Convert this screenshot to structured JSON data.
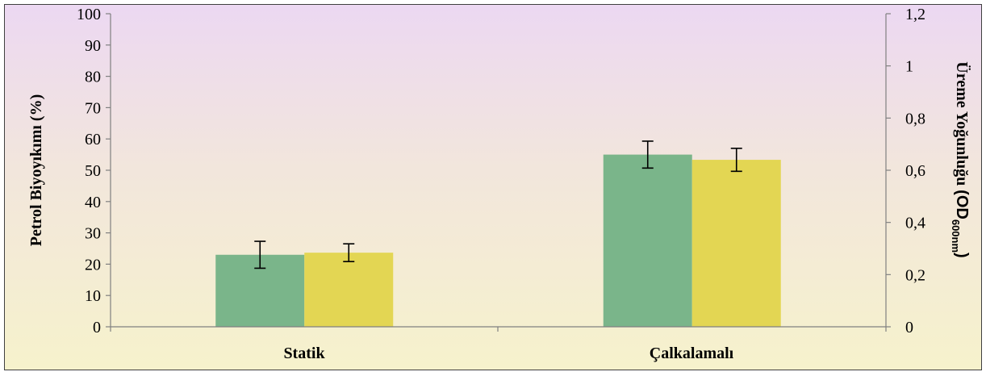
{
  "chart_data": {
    "type": "bar",
    "categories": [
      "Statik",
      "Çalkalamalı"
    ],
    "series": [
      {
        "name": "",
        "axis": "left",
        "color": "#7ab58a",
        "values": [
          23,
          55
        ],
        "errors": [
          4.3,
          4.3
        ]
      },
      {
        "name": "",
        "axis": "right",
        "color": "#e3d653",
        "values": [
          0.284,
          0.64
        ],
        "errors": [
          0.034,
          0.044
        ]
      }
    ],
    "ylabel_left": "Petrol Biyoyıkımı (%)",
    "ylabel_right": "Üreme Yoğunluğu",
    "ylabel_right_od": "(OD",
    "ylabel_right_sub": "600nm",
    "ylabel_right_close": ")",
    "ylim_left": [
      0,
      100
    ],
    "ylim_right": [
      0,
      1.2
    ],
    "yticks_left": [
      "0",
      "10",
      "20",
      "30",
      "40",
      "50",
      "60",
      "70",
      "80",
      "90",
      "100"
    ],
    "yticks_right": [
      "0",
      "0,2",
      "0,4",
      "0,6",
      "0,8",
      "1",
      "1,2"
    ],
    "grid": false,
    "legend": "none"
  }
}
